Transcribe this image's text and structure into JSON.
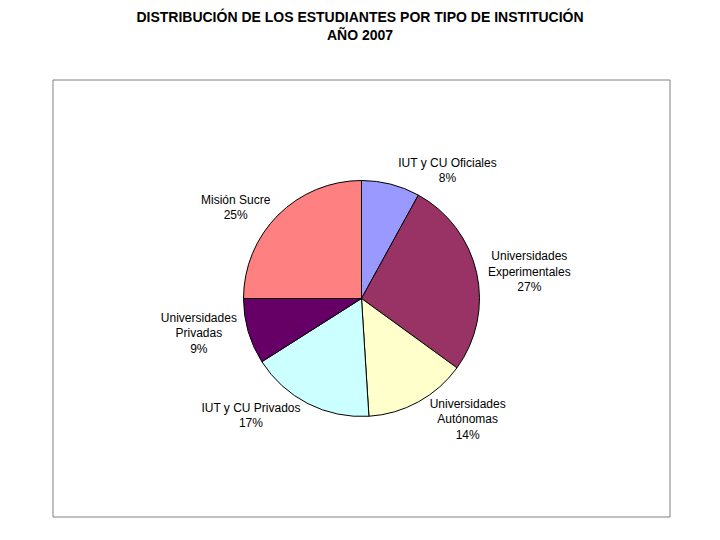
{
  "chart_data": {
    "type": "pie",
    "title": "DISTRIBUCIÓN DE LOS ESTUDIANTES POR TIPO DE INSTITUCIÓN",
    "subtitle": "AÑO 2007",
    "categories": [
      "IUT y CU Oficiales",
      "Universidades Experimentales",
      "Universidades Autónomas",
      "IUT y CU Privados",
      "Universidades Privadas",
      "Misión Sucre"
    ],
    "values": [
      8,
      27,
      14,
      17,
      9,
      25
    ],
    "value_labels": [
      "8%",
      "27%",
      "14%",
      "17%",
      "9%",
      "25%"
    ],
    "colors": [
      "#9999ff",
      "#993366",
      "#ffffcc",
      "#ccffff",
      "#660066",
      "#ff8080"
    ],
    "data_labels": true
  }
}
